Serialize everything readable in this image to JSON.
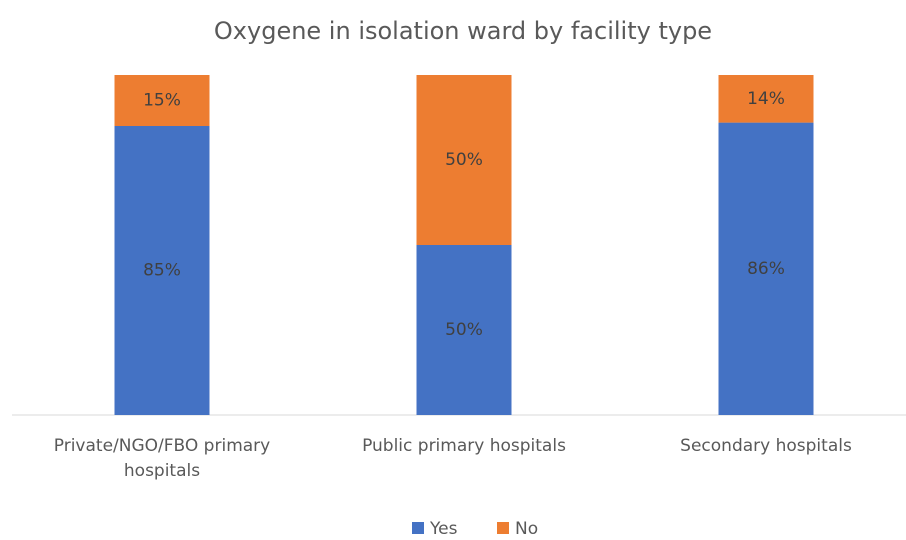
{
  "chart_data": {
    "type": "stacked_bar",
    "title": "Oxygene in isolation ward by facility type",
    "categories": [
      "Private/NGO/FBO primary hospitals",
      "Public primary hospitals",
      "Secondary hospitals"
    ],
    "series": [
      {
        "name": "Yes",
        "color": "#4472c4",
        "values": [
          85,
          50,
          86
        ],
        "value_labels": [
          "85%",
          "50%",
          "86%"
        ]
      },
      {
        "name": "No",
        "color": "#ed7d31",
        "values": [
          15,
          50,
          14
        ],
        "value_labels": [
          "15%",
          "50%",
          "14%"
        ]
      }
    ],
    "legend": "bottom"
  }
}
